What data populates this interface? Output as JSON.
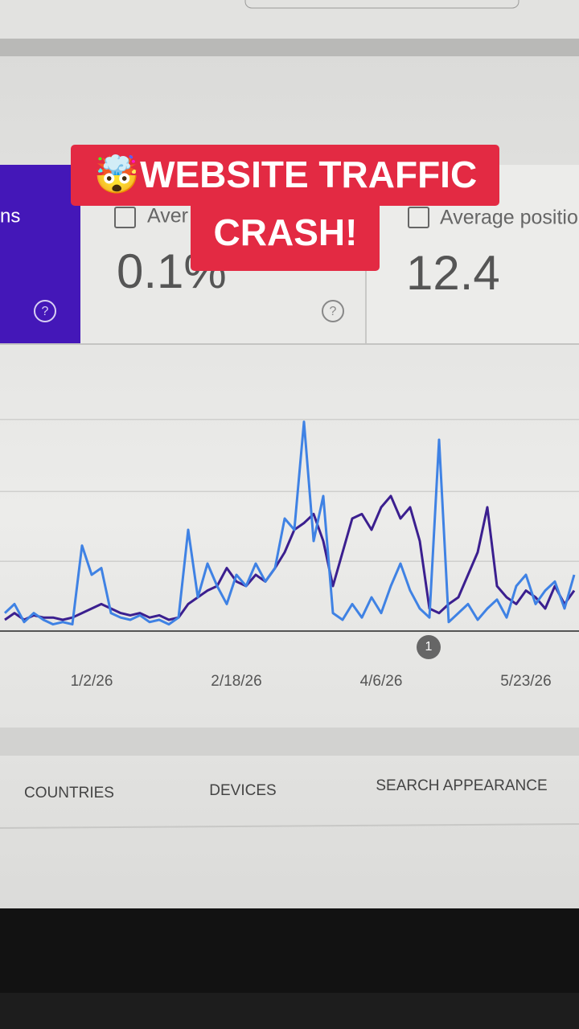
{
  "caption": {
    "line1": "🤯WEBSITE TRAFFIC",
    "line2": "CRASH!"
  },
  "cards": [
    {
      "label": "ns"
    },
    {
      "label": "Aver",
      "value": "0.1%"
    },
    {
      "label": "Average positio",
      "value": "12.4"
    }
  ],
  "chart_data": {
    "type": "line",
    "categories": [
      null,
      null,
      null,
      null,
      null,
      null,
      null,
      null,
      null,
      "1/2/26",
      null,
      null,
      null,
      null,
      null,
      null,
      null,
      null,
      null,
      null,
      null,
      null,
      null,
      null,
      "2/18/26",
      null,
      null,
      null,
      null,
      null,
      null,
      null,
      null,
      null,
      null,
      null,
      null,
      null,
      null,
      "4/6/26",
      null,
      null,
      null,
      null,
      null,
      null,
      null,
      null,
      null,
      null,
      null,
      null,
      null,
      null,
      "5/23/26",
      null,
      null,
      null,
      null,
      null
    ],
    "ylim": [
      0,
      100
    ],
    "yticks": [
      0,
      31,
      62,
      94
    ],
    "grid": true,
    "annotation": "1",
    "series": [
      {
        "color": "#3b1f8f",
        "values": [
          5,
          8,
          5,
          7,
          6,
          6,
          5,
          6,
          8,
          10,
          12,
          10,
          8,
          7,
          8,
          6,
          7,
          5,
          6,
          12,
          15,
          18,
          20,
          28,
          22,
          20,
          25,
          22,
          28,
          35,
          45,
          48,
          52,
          40,
          20,
          35,
          50,
          52,
          45,
          55,
          60,
          50,
          55,
          40,
          10,
          8,
          12,
          15,
          25,
          35,
          55,
          20,
          15,
          12,
          18,
          15,
          10,
          20,
          12,
          18
        ]
      },
      {
        "color": "#3f82e4",
        "values": [
          8,
          12,
          4,
          8,
          5,
          3,
          4,
          3,
          38,
          25,
          28,
          8,
          6,
          5,
          7,
          4,
          5,
          3,
          6,
          45,
          15,
          30,
          20,
          12,
          25,
          20,
          30,
          22,
          28,
          50,
          45,
          93,
          40,
          60,
          8,
          5,
          12,
          6,
          15,
          8,
          20,
          30,
          18,
          10,
          6,
          85,
          4,
          8,
          12,
          5,
          10,
          14,
          6,
          20,
          25,
          12,
          18,
          22,
          10,
          25
        ]
      }
    ]
  },
  "tabs": [
    "COUNTRIES",
    "DEVICES",
    "SEARCH APPEARANCE"
  ]
}
